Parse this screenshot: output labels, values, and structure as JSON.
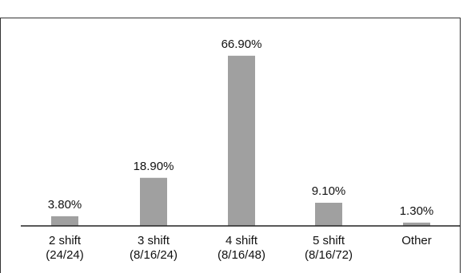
{
  "header": {
    "title_text": ""
  },
  "chart_data": {
    "type": "bar",
    "categories": [
      [
        "2 shift",
        "(24/24)"
      ],
      [
        "3 shift",
        "(8/16/24)"
      ],
      [
        "4 shift",
        "(8/16/48)"
      ],
      [
        "5 shift",
        "(8/16/72)"
      ],
      [
        "Other"
      ]
    ],
    "values": [
      3.8,
      18.9,
      66.9,
      9.1,
      1.3
    ],
    "value_labels": [
      "3.80%",
      "18.90%",
      "66.90%",
      "9.10%",
      "1.30%"
    ],
    "ylim": [
      0,
      75
    ],
    "grid": false,
    "bar_color": "#a0a0a0",
    "axis_color": "#222222",
    "title": "",
    "xlabel": "",
    "ylabel": ""
  }
}
